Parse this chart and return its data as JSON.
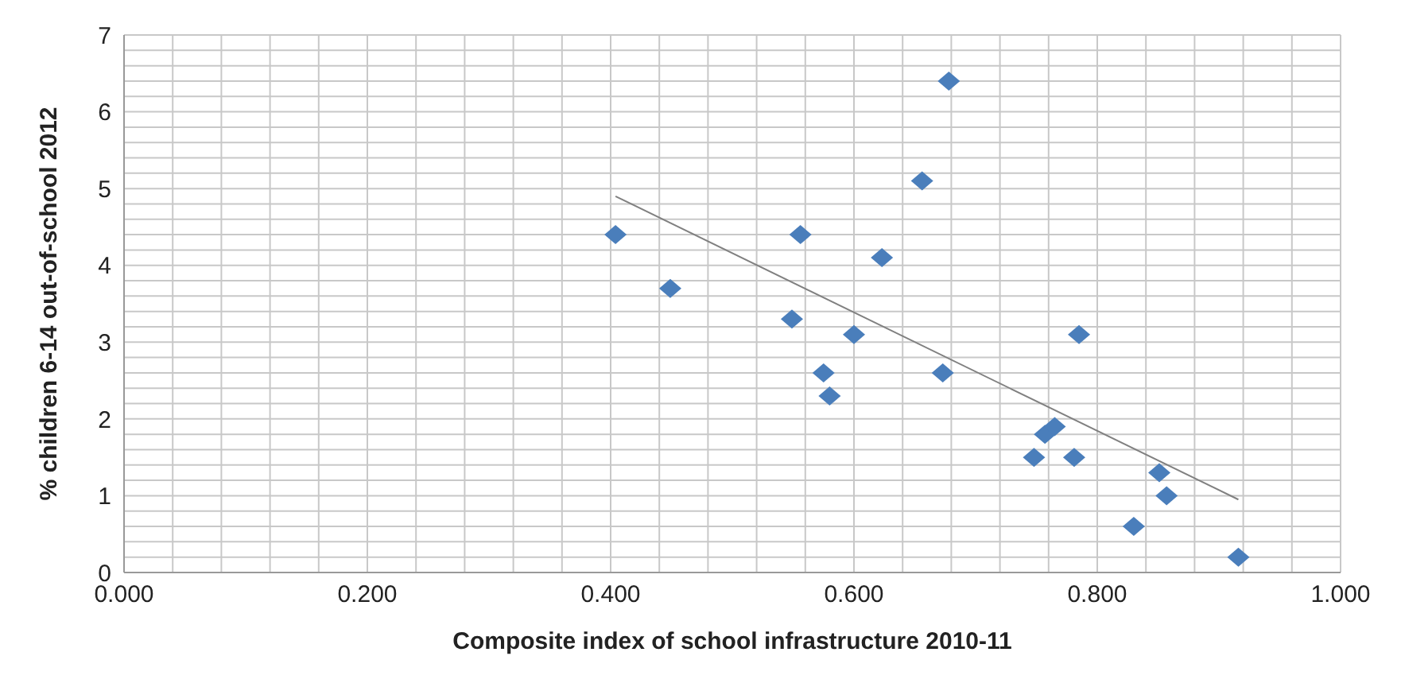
{
  "chart_data": {
    "type": "scatter",
    "xlabel": "Composite index of school infrastructure 2010-11",
    "ylabel": "% children 6-14 out-of-school 2012",
    "xlim": [
      0,
      1
    ],
    "ylim": [
      0,
      7
    ],
    "xticks": [
      {
        "value": 0,
        "label": "0.000"
      },
      {
        "value": 0.04,
        "label": null
      },
      {
        "value": 0.08,
        "label": null
      },
      {
        "value": 0.12,
        "label": null
      },
      {
        "value": 0.16,
        "label": null
      },
      {
        "value": 0.2,
        "label": "0.200"
      },
      {
        "value": 0.24,
        "label": null
      },
      {
        "value": 0.28,
        "label": null
      },
      {
        "value": 0.32,
        "label": null
      },
      {
        "value": 0.36,
        "label": null
      },
      {
        "value": 0.4,
        "label": "0.400"
      },
      {
        "value": 0.44,
        "label": null
      },
      {
        "value": 0.48,
        "label": null
      },
      {
        "value": 0.52,
        "label": null
      },
      {
        "value": 0.56,
        "label": null
      },
      {
        "value": 0.6,
        "label": "0.600"
      },
      {
        "value": 0.64,
        "label": null
      },
      {
        "value": 0.68,
        "label": null
      },
      {
        "value": 0.72,
        "label": null
      },
      {
        "value": 0.76,
        "label": null
      },
      {
        "value": 0.8,
        "label": "0.800"
      },
      {
        "value": 0.84,
        "label": null
      },
      {
        "value": 0.88,
        "label": null
      },
      {
        "value": 0.92,
        "label": null
      },
      {
        "value": 0.96,
        "label": null
      },
      {
        "value": 1,
        "label": "1.000"
      }
    ],
    "yticks": [
      0,
      {
        "value": 0.2,
        "label": null
      },
      {
        "value": 0.4,
        "label": null
      },
      {
        "value": 0.6,
        "label": null
      },
      {
        "value": 0.8,
        "label": null
      },
      1,
      {
        "value": 1.2,
        "label": null
      },
      {
        "value": 1.4,
        "label": null
      },
      {
        "value": 1.6,
        "label": null
      },
      {
        "value": 1.8,
        "label": null
      },
      2,
      {
        "value": 2.2,
        "label": null
      },
      {
        "value": 2.4,
        "label": null
      },
      {
        "value": 2.6,
        "label": null
      },
      {
        "value": 2.8,
        "label": null
      },
      3,
      {
        "value": 3.2,
        "label": null
      },
      {
        "value": 3.4,
        "label": null
      },
      {
        "value": 3.6,
        "label": null
      },
      {
        "value": 3.8,
        "label": null
      },
      4,
      {
        "value": 4.2,
        "label": null
      },
      {
        "value": 4.4,
        "label": null
      },
      {
        "value": 4.6,
        "label": null
      },
      {
        "value": 4.8,
        "label": null
      },
      5,
      {
        "value": 5.2,
        "label": null
      },
      {
        "value": 5.4,
        "label": null
      },
      {
        "value": 5.6,
        "label": null
      },
      {
        "value": 5.8,
        "label": null
      },
      6,
      {
        "value": 6.2,
        "label": null
      },
      {
        "value": 6.4,
        "label": null
      },
      {
        "value": 6.6,
        "label": null
      },
      {
        "value": 6.8,
        "label": null
      },
      7
    ],
    "grid": true,
    "legend": false,
    "marker": "diamond",
    "series": [
      {
        "color": "#4a7ebb",
        "x": [
          0.404,
          0.449,
          0.549,
          0.556,
          0.575,
          0.58,
          0.6,
          0.623,
          0.656,
          0.678,
          0.673,
          0.785,
          0.757,
          0.765,
          0.748,
          0.781,
          0.851,
          0.857,
          0.83,
          0.916
        ],
        "values": [
          4.4,
          3.7,
          3.3,
          4.4,
          2.6,
          2.3,
          3.1,
          4.1,
          5.1,
          6.4,
          2.6,
          3.1,
          1.8,
          1.9,
          1.5,
          1.5,
          1.3,
          1.0,
          0.6,
          0.2
        ]
      },
      {
        "type": "line",
        "marker": "none",
        "color": "#808080",
        "x": [
          0.404,
          0.916
        ],
        "values": [
          4.9,
          0.95
        ]
      }
    ]
  }
}
